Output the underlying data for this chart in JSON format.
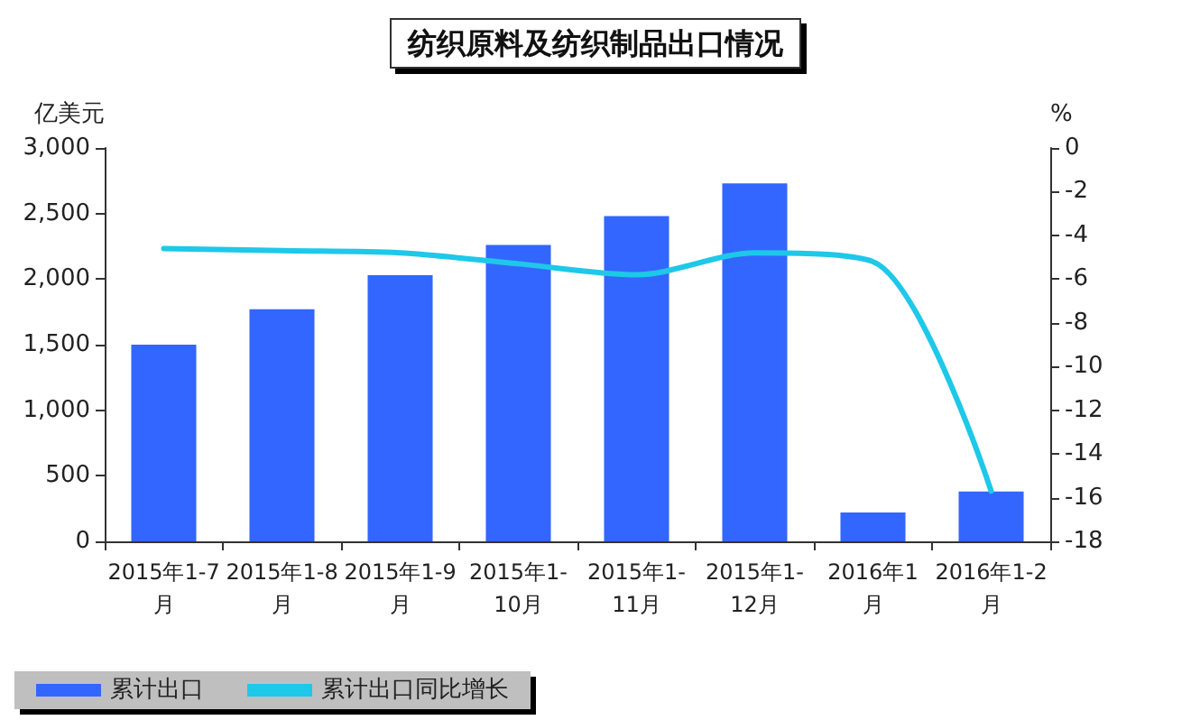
{
  "chart_data": {
    "type": "bar",
    "title": "纺织原料及纺织制品出口情况",
    "ylabel": "亿美元",
    "y2label": "%",
    "categories": [
      "2015年1-7月",
      "2015年1-8月",
      "2015年1-9月",
      "2015年1-10月",
      "2015年1-11月",
      "2015年1-12月",
      "2016年1月",
      "2016年1-2月"
    ],
    "series": [
      {
        "name": "累计出口",
        "color": "#3366ff",
        "values": [
          1500,
          1770,
          2030,
          2260,
          2480,
          2730,
          220,
          380
        ]
      },
      {
        "name": "累计出口同比增长",
        "type": "line",
        "axis": "y2",
        "color": "#1ec8e8",
        "values": [
          -4.6,
          -4.7,
          -4.8,
          -5.3,
          -5.8,
          -4.8,
          -5.2,
          -15.7
        ]
      }
    ],
    "ylim": [
      0,
      3000
    ],
    "yticks": [
      {
        "value": 0,
        "label": "0"
      },
      {
        "value": 500,
        "label": "500"
      },
      {
        "value": 1000,
        "label": "1,000"
      },
      {
        "value": 1500,
        "label": "1,500"
      },
      {
        "value": 2000,
        "label": "2,000"
      },
      {
        "value": 2500,
        "label": "2,500"
      },
      {
        "value": 3000,
        "label": "3,000"
      }
    ],
    "y2lim": [
      -18,
      0
    ],
    "y2ticks": [
      -18,
      -16,
      -14,
      -12,
      -10,
      -8,
      -6,
      -4,
      -2,
      0
    ],
    "legend": "bottom left",
    "grid": false,
    "marker": "none"
  }
}
